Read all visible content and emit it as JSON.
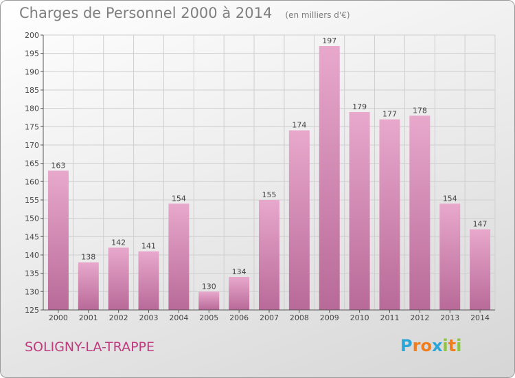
{
  "header": {
    "title": "Charges de Personnel 2000 à 2014",
    "subtitle": "(en milliers d'€)"
  },
  "footer": {
    "town": "SOLIGNY-LA-TRAPPE",
    "logo_letters": [
      "P",
      "r",
      "o",
      "x",
      "i",
      "t",
      "i"
    ],
    "logo_colors": [
      "#2aa6d8",
      "#f07d1e",
      "#f07d1e",
      "#2aa6d8",
      "#8cc63f",
      "#f07d1e",
      "#8cc63f"
    ]
  },
  "colors": {
    "bar_top": "#e8a8cc",
    "bar_bottom": "#b86a98",
    "grid": "#cfcfcf",
    "accent": "#c03a7e"
  },
  "chart_data": {
    "type": "bar",
    "title": "Charges de Personnel 2000 à 2014",
    "subtitle": "(en milliers d'€)",
    "categories": [
      "2000",
      "2001",
      "2002",
      "2003",
      "2004",
      "2005",
      "2006",
      "2007",
      "2008",
      "2009",
      "2010",
      "2011",
      "2012",
      "2013",
      "2014"
    ],
    "values": [
      163,
      138,
      142,
      141,
      154,
      130,
      134,
      155,
      174,
      197,
      179,
      177,
      178,
      154,
      147
    ],
    "ylim": [
      125,
      200
    ],
    "yticks": [
      125,
      130,
      135,
      140,
      145,
      150,
      155,
      160,
      165,
      170,
      175,
      180,
      185,
      190,
      195,
      200
    ],
    "grid": true
  }
}
